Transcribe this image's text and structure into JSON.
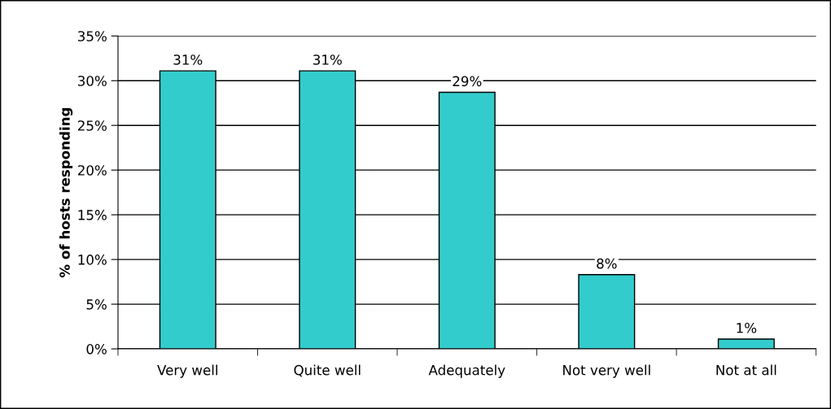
{
  "chart_data": {
    "type": "bar",
    "ylabel": "% of hosts responding",
    "categories": [
      "Very well",
      "Quite well",
      "Adequately",
      "Not very well",
      "Not at all"
    ],
    "values": [
      31.1,
      31.1,
      28.7,
      8.3,
      1.1
    ],
    "value_labels": [
      "31%",
      "31%",
      "29%",
      "8%",
      "1%"
    ],
    "color": "#33cccc",
    "ylim": [
      0,
      35
    ],
    "yticks": [
      {
        "value": 0,
        "label": "0%"
      },
      {
        "value": 5,
        "label": "5%"
      },
      {
        "value": 10,
        "label": "10%"
      },
      {
        "value": 15,
        "label": "15%"
      },
      {
        "value": 20,
        "label": "20%"
      },
      {
        "value": 25,
        "label": "25%"
      },
      {
        "value": 30,
        "label": "30%"
      },
      {
        "value": 35,
        "label": "35%"
      }
    ],
    "grid": "y",
    "legend": false
  }
}
